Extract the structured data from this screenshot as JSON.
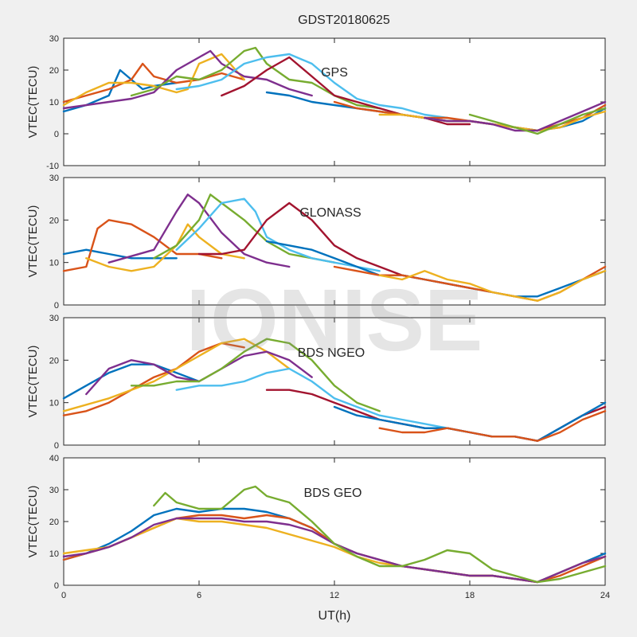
{
  "figure": {
    "title": "GDST20180625",
    "xlabel": "UT(h)",
    "watermark": "IONISE"
  },
  "colors": [
    "#0072BD",
    "#D95319",
    "#EDB120",
    "#7E2F8E",
    "#77AC30",
    "#4DBEEE",
    "#A2142F"
  ],
  "chart_data": [
    {
      "type": "line",
      "panel_label": "GPS",
      "ylabel": "VTEC(TECU)",
      "xlim": [
        0,
        24
      ],
      "ylim": [
        -10,
        30
      ],
      "xticks": [
        "0",
        "6",
        "12",
        "18",
        "24"
      ],
      "yticks": [
        "-10",
        "0",
        "10",
        "20",
        "30"
      ],
      "series": [
        {
          "x": [
            0,
            1,
            2,
            2.5,
            3,
            3.5,
            4,
            5
          ],
          "y": [
            7,
            9,
            12,
            20,
            17,
            14,
            15,
            16
          ]
        },
        {
          "x": [
            0,
            1,
            2,
            3,
            3.5,
            4,
            5,
            6,
            7,
            8
          ],
          "y": [
            10,
            12,
            14,
            17,
            22,
            18,
            16,
            17,
            19,
            17
          ]
        },
        {
          "x": [
            0,
            1,
            2,
            3,
            4,
            5,
            5.5,
            6,
            7,
            8
          ],
          "y": [
            9,
            13,
            16,
            16,
            15,
            13,
            14,
            22,
            25,
            17
          ]
        },
        {
          "x": [
            0,
            2,
            3,
            4,
            5,
            6,
            6.5,
            7,
            8,
            9,
            10,
            11
          ],
          "y": [
            8,
            10,
            11,
            13,
            20,
            24,
            26,
            22,
            18,
            17,
            14,
            12
          ]
        },
        {
          "x": [
            3,
            4,
            5,
            6,
            7,
            8,
            8.5,
            9,
            10,
            11,
            12,
            13,
            14
          ],
          "y": [
            12,
            14,
            18,
            17,
            20,
            26,
            27,
            22,
            17,
            16,
            12,
            9,
            8
          ]
        },
        {
          "x": [
            5,
            6,
            7,
            8,
            9,
            10,
            11,
            12,
            13,
            14,
            15,
            16,
            17
          ],
          "y": [
            14,
            15,
            17,
            22,
            24,
            25,
            22,
            16,
            11,
            9,
            8,
            6,
            5
          ]
        },
        {
          "x": [
            7,
            8,
            9,
            10,
            11,
            12,
            13,
            14,
            15,
            16,
            17,
            18
          ],
          "y": [
            12,
            15,
            20,
            24,
            18,
            12,
            10,
            8,
            6,
            5,
            3,
            3
          ]
        },
        {
          "x": [
            9,
            10,
            11,
            12,
            13,
            14,
            15,
            16,
            17,
            18,
            19,
            20,
            21,
            22,
            23,
            24
          ],
          "y": [
            13,
            12,
            10,
            9,
            8,
            7,
            6,
            5,
            4,
            4,
            3,
            2,
            1,
            2,
            4,
            8
          ]
        },
        {
          "x": [
            12,
            13,
            14,
            15,
            16,
            17,
            18,
            19,
            20,
            21,
            22,
            23,
            24
          ],
          "y": [
            10,
            8,
            7,
            6,
            5,
            5,
            4,
            3,
            2,
            1,
            3,
            5,
            9
          ]
        },
        {
          "x": [
            14,
            15,
            16,
            17,
            18,
            19,
            20,
            21,
            22,
            23,
            24
          ],
          "y": [
            6,
            6,
            5,
            4,
            4,
            3,
            2,
            1,
            2,
            5,
            7
          ]
        },
        {
          "x": [
            16,
            17,
            18,
            19,
            20,
            21,
            22,
            23,
            24
          ],
          "y": [
            5,
            4,
            4,
            3,
            1,
            1,
            4,
            7,
            10
          ]
        },
        {
          "x": [
            18,
            19,
            20,
            21,
            22,
            23,
            24
          ],
          "y": [
            6,
            4,
            2,
            0,
            3,
            6,
            8
          ]
        }
      ]
    },
    {
      "type": "line",
      "panel_label": "GLONASS",
      "ylabel": "VTEC(TECU)",
      "xlim": [
        0,
        24
      ],
      "ylim": [
        0,
        30
      ],
      "xticks": [
        "0",
        "6",
        "12",
        "18",
        "24"
      ],
      "yticks": [
        "0",
        "10",
        "20",
        "30"
      ],
      "series": [
        {
          "x": [
            0,
            1,
            2,
            3,
            4,
            5
          ],
          "y": [
            12,
            13,
            12,
            11,
            11,
            11
          ]
        },
        {
          "x": [
            0,
            1,
            1.5,
            2,
            3,
            4,
            5,
            6,
            7
          ],
          "y": [
            8,
            9,
            18,
            20,
            19,
            16,
            12,
            12,
            11
          ]
        },
        {
          "x": [
            1,
            2,
            3,
            4,
            5,
            5.5,
            6,
            7,
            8
          ],
          "y": [
            11,
            9,
            8,
            9,
            14,
            19,
            16,
            12,
            11
          ]
        },
        {
          "x": [
            2,
            4,
            5,
            5.5,
            6,
            7,
            8,
            9,
            10
          ],
          "y": [
            10,
            13,
            22,
            26,
            24,
            17,
            12,
            10,
            9
          ]
        },
        {
          "x": [
            4,
            5,
            6,
            6.5,
            7,
            8,
            9,
            10,
            11,
            12
          ],
          "y": [
            11,
            14,
            20,
            26,
            24,
            20,
            15,
            12,
            11,
            10
          ]
        },
        {
          "x": [
            5,
            6,
            7,
            8,
            8.5,
            9,
            10,
            11,
            12,
            13,
            14
          ],
          "y": [
            13,
            18,
            24,
            25,
            22,
            16,
            13,
            11,
            10,
            9,
            8
          ]
        },
        {
          "x": [
            6,
            7,
            8,
            9,
            10,
            11,
            12,
            13,
            14,
            15,
            16,
            17,
            18
          ],
          "y": [
            12,
            12,
            13,
            20,
            24,
            20,
            14,
            11,
            9,
            7,
            6,
            5,
            4
          ]
        },
        {
          "x": [
            9,
            10,
            11,
            12,
            13,
            14,
            15,
            16,
            17,
            18,
            19,
            20,
            21,
            22,
            23,
            24
          ],
          "y": [
            15,
            14,
            13,
            11,
            9,
            7,
            7,
            6,
            5,
            4,
            3,
            2,
            2,
            4,
            6,
            8
          ]
        },
        {
          "x": [
            12,
            13,
            14,
            15,
            16,
            17,
            18,
            19,
            20,
            21,
            22,
            23,
            24
          ],
          "y": [
            9,
            8,
            7,
            7,
            6,
            5,
            4,
            3,
            2,
            1,
            3,
            6,
            9
          ]
        },
        {
          "x": [
            14,
            15,
            16,
            17,
            18,
            19,
            20,
            21,
            22,
            23,
            24
          ],
          "y": [
            7,
            6,
            8,
            6,
            5,
            3,
            2,
            1,
            3,
            6,
            8
          ]
        }
      ]
    },
    {
      "type": "line",
      "panel_label": "BDS NGEO",
      "ylabel": "VTEC(TECU)",
      "xlim": [
        0,
        24
      ],
      "ylim": [
        0,
        30
      ],
      "xticks": [
        "0",
        "6",
        "12",
        "18",
        "24"
      ],
      "yticks": [
        "0",
        "10",
        "20",
        "30"
      ],
      "series": [
        {
          "x": [
            0,
            1,
            2,
            3,
            4,
            5,
            6
          ],
          "y": [
            11,
            14,
            17,
            19,
            19,
            17,
            15
          ]
        },
        {
          "x": [
            0,
            1,
            2,
            3,
            4,
            5,
            6,
            7,
            8
          ],
          "y": [
            7,
            8,
            10,
            13,
            16,
            18,
            22,
            24,
            23
          ]
        },
        {
          "x": [
            0,
            2,
            3,
            4,
            5,
            6,
            7,
            8,
            9,
            10
          ],
          "y": [
            8,
            11,
            13,
            15,
            18,
            21,
            24,
            25,
            22,
            18
          ]
        },
        {
          "x": [
            1,
            2,
            3,
            4,
            5,
            6,
            7,
            8,
            9,
            10,
            11
          ],
          "y": [
            12,
            18,
            20,
            19,
            16,
            15,
            18,
            21,
            22,
            20,
            16
          ]
        },
        {
          "x": [
            3,
            4,
            5,
            6,
            7,
            8,
            9,
            10,
            11,
            12,
            13,
            14
          ],
          "y": [
            14,
            14,
            15,
            15,
            18,
            22,
            25,
            24,
            20,
            14,
            10,
            8
          ]
        },
        {
          "x": [
            5,
            6,
            7,
            8,
            9,
            10,
            11,
            12,
            13,
            14,
            15,
            16,
            17,
            18
          ],
          "y": [
            13,
            14,
            14,
            15,
            17,
            18,
            15,
            11,
            9,
            7,
            6,
            5,
            4,
            3
          ]
        },
        {
          "x": [
            9,
            10,
            11,
            12,
            13,
            14,
            15,
            16,
            17,
            18,
            19,
            20,
            21,
            22,
            23,
            24
          ],
          "y": [
            13,
            13,
            12,
            10,
            8,
            6,
            5,
            4,
            4,
            3,
            2,
            2,
            1,
            4,
            7,
            9
          ]
        },
        {
          "x": [
            12,
            13,
            14,
            15,
            16,
            17,
            18,
            19,
            20,
            21,
            22,
            23,
            24
          ],
          "y": [
            9,
            7,
            6,
            5,
            4,
            4,
            3,
            2,
            2,
            1,
            4,
            7,
            10
          ]
        },
        {
          "x": [
            14,
            15,
            16,
            17,
            18,
            19,
            20,
            21,
            22,
            23,
            24
          ],
          "y": [
            4,
            3,
            3,
            4,
            3,
            2,
            2,
            1,
            3,
            6,
            8
          ]
        }
      ]
    },
    {
      "type": "line",
      "panel_label": "BDS GEO",
      "ylabel": "VTEC(TECU)",
      "xlim": [
        0,
        24
      ],
      "ylim": [
        0,
        40
      ],
      "xticks": [
        "0",
        "6",
        "12",
        "18",
        "24"
      ],
      "yticks": [
        "0",
        "10",
        "20",
        "30",
        "40"
      ],
      "series": [
        {
          "x": [
            0,
            1,
            2,
            3,
            4,
            5,
            6,
            7,
            8,
            9,
            10,
            11,
            12,
            13,
            14,
            15,
            16,
            17,
            18,
            19,
            20,
            21,
            22,
            23,
            24
          ],
          "y": [
            8,
            10,
            13,
            17,
            22,
            24,
            23,
            24,
            24,
            23,
            21,
            18,
            13,
            10,
            8,
            6,
            5,
            4,
            3,
            3,
            2,
            1,
            4,
            7,
            10
          ]
        },
        {
          "x": [
            0,
            1,
            2,
            3,
            4,
            5,
            6,
            7,
            8,
            9,
            10,
            11,
            12,
            13,
            14,
            15,
            16,
            17,
            18,
            19,
            20,
            21,
            22,
            23,
            24
          ],
          "y": [
            8,
            10,
            12,
            15,
            18,
            21,
            22,
            22,
            21,
            22,
            21,
            18,
            13,
            10,
            8,
            6,
            5,
            4,
            3,
            3,
            2,
            1,
            3,
            6,
            9
          ]
        },
        {
          "x": [
            0,
            1,
            2,
            3,
            4,
            5,
            6,
            7,
            8,
            9,
            10,
            11,
            12,
            13,
            14,
            15,
            16,
            17,
            18,
            19,
            20,
            21,
            22,
            23,
            24
          ],
          "y": [
            10,
            11,
            12,
            15,
            18,
            21,
            20,
            20,
            19,
            18,
            16,
            14,
            12,
            9,
            7,
            6,
            5,
            4,
            3,
            3,
            2,
            1,
            4,
            7,
            9
          ]
        },
        {
          "x": [
            0,
            1,
            2,
            3,
            4,
            5,
            6,
            7,
            8,
            9,
            10,
            11,
            12,
            13,
            14,
            15,
            16,
            17,
            18,
            19,
            20,
            21,
            22,
            23,
            24
          ],
          "y": [
            9,
            10,
            12,
            15,
            19,
            21,
            21,
            21,
            20,
            20,
            19,
            17,
            13,
            10,
            8,
            6,
            5,
            4,
            3,
            3,
            2,
            1,
            4,
            7,
            9
          ]
        },
        {
          "x": [
            4,
            4.5,
            5,
            6,
            7,
            8,
            8.5,
            9,
            10,
            11,
            12,
            13,
            14,
            15,
            16,
            17,
            18,
            19,
            20,
            21,
            22,
            23,
            24
          ],
          "y": [
            25,
            29,
            26,
            24,
            24,
            30,
            31,
            28,
            26,
            20,
            13,
            9,
            6,
            6,
            8,
            11,
            10,
            5,
            3,
            1,
            2,
            4,
            6
          ]
        }
      ]
    }
  ]
}
